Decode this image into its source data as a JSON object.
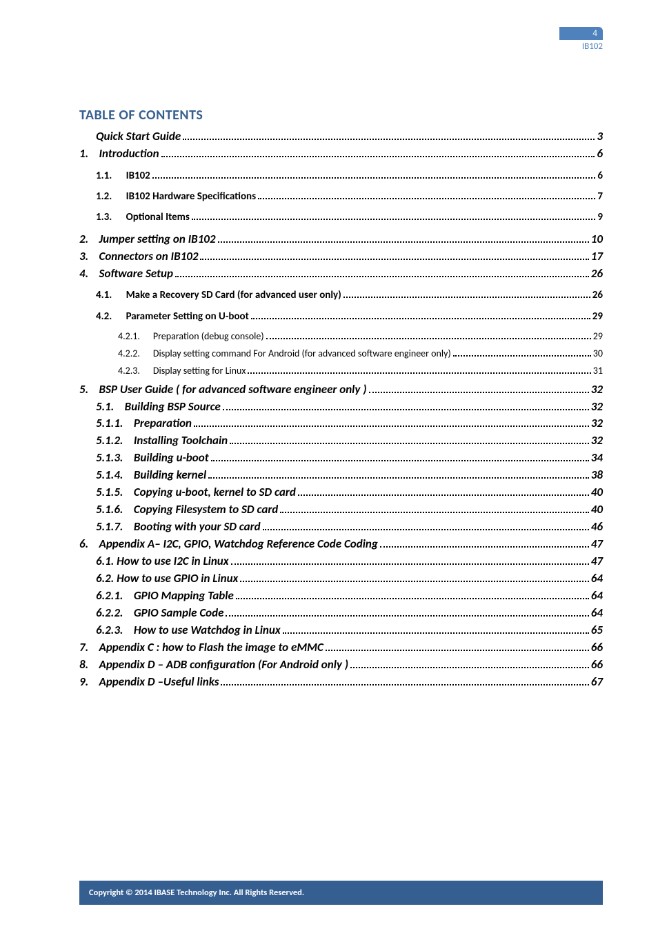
{
  "header": {
    "page_number": "4",
    "doc_id": "IB102",
    "badge_bg": "#4f81bd",
    "badge_color": "#ffffff",
    "doc_id_color": "#4f81bd"
  },
  "toc": {
    "title": "TABLE OF CONTENTS",
    "title_color": "#365f91",
    "entries": [
      {
        "level": "lvl-1b",
        "num": "",
        "text": "Quick Start Guide",
        "page": "3"
      },
      {
        "level": "lvl-1",
        "num": "1.",
        "text": "Introduction",
        "page": "6"
      },
      {
        "level": "lvl-2",
        "num": "1.1.",
        "text": "IB102",
        "page": "6"
      },
      {
        "level": "lvl-2",
        "num": "1.2.",
        "text": "IB102 Hardware Specifications",
        "page": "7"
      },
      {
        "level": "lvl-2",
        "num": "1.3.",
        "text": "Optional Items",
        "page": "9"
      },
      {
        "level": "lvl-1",
        "num": "2.",
        "text": "Jumper setting on IB102",
        "page": "10"
      },
      {
        "level": "lvl-1",
        "num": "3.",
        "text": "Connectors on IB102",
        "page": "17"
      },
      {
        "level": "lvl-1",
        "num": "4.",
        "text": "Software Setup",
        "page": "26"
      },
      {
        "level": "lvl-2",
        "num": "4.1.",
        "text": "Make a Recovery SD Card (for advanced user only)",
        "page": "26"
      },
      {
        "level": "lvl-2",
        "num": "4.2.",
        "text": "Parameter Setting on U-boot",
        "page": "29"
      },
      {
        "level": "lvl-3",
        "num": "4.2.1.",
        "text": "Preparation (debug console)",
        "page": "29"
      },
      {
        "level": "lvl-3",
        "num": "4.2.2.",
        "text": "Display setting command For Android (for advanced software engineer only)",
        "page": "30"
      },
      {
        "level": "lvl-3",
        "num": "4.2.3.",
        "text": "Display setting for Linux",
        "page": "31"
      },
      {
        "level": "lvl-1",
        "num": "5.",
        "text": "BSP User Guide ( for advanced software engineer only )",
        "page": "32"
      },
      {
        "level": "lvl-1b",
        "num": "5.1.",
        "text": "Building BSP Source",
        "page": "32"
      },
      {
        "level": "lvl-1b",
        "num": "5.1.1.",
        "text": "Preparation",
        "page": "32"
      },
      {
        "level": "lvl-1b",
        "num": "5.1.2.",
        "text": "Installing Toolchain",
        "page": "32"
      },
      {
        "level": "lvl-1b",
        "num": "5.1.3.",
        "text": "Building u-boot",
        "page": "34"
      },
      {
        "level": "lvl-1b",
        "num": "5.1.4.",
        "text": "Building kernel",
        "page": "38"
      },
      {
        "level": "lvl-1b",
        "num": "5.1.5.",
        "text": "Copying u-boot, kernel to SD card",
        "page": "40"
      },
      {
        "level": "lvl-1b",
        "num": "5.1.6.",
        "text": "Copying Filesystem to SD card",
        "page": "40"
      },
      {
        "level": "lvl-1b",
        "num": "5.1.7.",
        "text": "Booting with your SD card",
        "page": "46"
      },
      {
        "level": "lvl-1",
        "num": "6.",
        "text": "Appendix A– I2C, GPIO, Watchdog Reference Code Coding",
        "page": "47"
      },
      {
        "level": "lvl-1b",
        "num": "",
        "text": "6.1. How to use I2C in Linux",
        "page": "47"
      },
      {
        "level": "lvl-1b",
        "num": "",
        "text": "6.2. How to use GPIO in Linux",
        "page": "64"
      },
      {
        "level": "lvl-1b",
        "num": "6.2.1.",
        "text": "GPIO Mapping Table",
        "page": "64"
      },
      {
        "level": "lvl-1b",
        "num": "6.2.2.",
        "text": "GPIO Sample Code",
        "page": "64"
      },
      {
        "level": "lvl-1b",
        "num": "6.2.3.",
        "text": "How to use Watchdog in Linux",
        "page": "65"
      },
      {
        "level": "lvl-1",
        "num": "7.",
        "text": "Appendix C : how to Flash the image to eMMC",
        "page": "66"
      },
      {
        "level": "lvl-1",
        "num": "8.",
        "text": "Appendix D – ADB configuration (For Android only )",
        "page": "66"
      },
      {
        "level": "lvl-1",
        "num": "9.",
        "text": "Appendix D –Useful links",
        "page": "67"
      }
    ]
  },
  "footer": {
    "text": "Copyright  ©  2014  IBASE  Technology  Inc.  All  Rights  Reserved.",
    "bg": "#365f91",
    "color": "#ffffff"
  }
}
